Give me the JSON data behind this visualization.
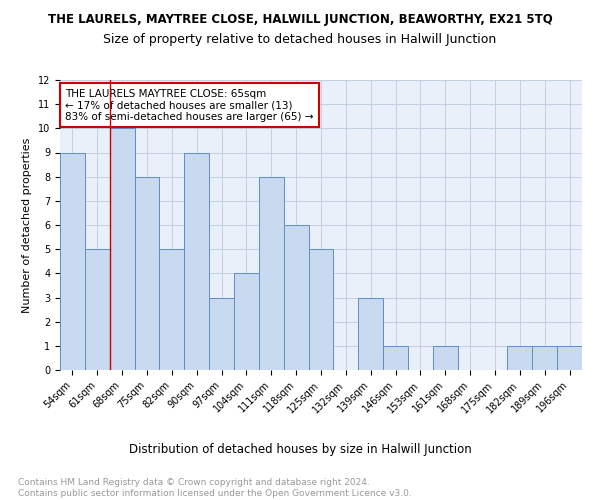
{
  "title": "THE LAURELS, MAYTREE CLOSE, HALWILL JUNCTION, BEAWORTHY, EX21 5TQ",
  "subtitle": "Size of property relative to detached houses in Halwill Junction",
  "xlabel": "Distribution of detached houses by size in Halwill Junction",
  "ylabel": "Number of detached properties",
  "categories": [
    "54sqm",
    "61sqm",
    "68sqm",
    "75sqm",
    "82sqm",
    "90sqm",
    "97sqm",
    "104sqm",
    "111sqm",
    "118sqm",
    "125sqm",
    "132sqm",
    "139sqm",
    "146sqm",
    "153sqm",
    "161sqm",
    "168sqm",
    "175sqm",
    "182sqm",
    "189sqm",
    "196sqm"
  ],
  "values": [
    9,
    5,
    10,
    8,
    5,
    9,
    3,
    4,
    8,
    6,
    5,
    0,
    3,
    1,
    0,
    1,
    0,
    0,
    1,
    1,
    1
  ],
  "bar_color": "#c9d9f0",
  "bar_edge_color": "#5b8fc9",
  "grid_color": "#bbccdd",
  "background_color": "#ffffff",
  "annotation_text": "THE LAURELS MAYTREE CLOSE: 65sqm\n← 17% of detached houses are smaller (13)\n83% of semi-detached houses are larger (65) →",
  "annotation_box_color": "#ffffff",
  "annotation_box_edge_color": "#cc0000",
  "red_line_color": "#cc0000",
  "ylim": [
    0,
    12
  ],
  "yticks": [
    0,
    1,
    2,
    3,
    4,
    5,
    6,
    7,
    8,
    9,
    10,
    11,
    12
  ],
  "footer": "Contains HM Land Registry data © Crown copyright and database right 2024.\nContains public sector information licensed under the Open Government Licence v3.0.",
  "title_fontsize": 8.5,
  "subtitle_fontsize": 9,
  "xlabel_fontsize": 8.5,
  "ylabel_fontsize": 8,
  "tick_fontsize": 7,
  "annotation_fontsize": 7.5,
  "footer_fontsize": 6.5
}
